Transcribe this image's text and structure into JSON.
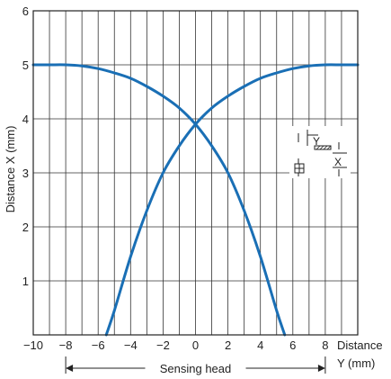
{
  "chart_data": {
    "type": "line",
    "ylabel": "Distance X (mm)",
    "xlabel_line1": "Distance",
    "xlabel_line2": "Y (mm)",
    "xlim": [
      -10,
      10
    ],
    "ylim": [
      0,
      6
    ],
    "x_ticks": [
      -10,
      -8,
      -6,
      -4,
      -2,
      0,
      2,
      4,
      6,
      8
    ],
    "x_tick_labels": [
      "−10",
      "−8",
      "−6",
      "−4",
      "−2",
      "0",
      "2",
      "4",
      "6",
      "8"
    ],
    "y_ticks": [
      1,
      2,
      3,
      4,
      5,
      6
    ],
    "y_tick_labels": [
      "1",
      "2",
      "3",
      "4",
      "5",
      "6"
    ],
    "grid": true,
    "line_color": "#1a6fb5",
    "series": [
      {
        "x": [
          -10,
          -9,
          -8,
          -7,
          -6,
          -5,
          -4,
          -3,
          -2,
          -1,
          0,
          1,
          2,
          3,
          4,
          5,
          5.5
        ],
        "y": [
          5.0,
          5.0,
          5.0,
          4.98,
          4.93,
          4.85,
          4.75,
          4.6,
          4.42,
          4.2,
          3.9,
          3.5,
          3.0,
          2.3,
          1.45,
          0.45,
          0.0
        ]
      },
      {
        "x": [
          -5.5,
          -5,
          -4,
          -3,
          -2,
          -1,
          0,
          1,
          2,
          3,
          4,
          5,
          6,
          7,
          8,
          9,
          10
        ],
        "y": [
          0.0,
          0.45,
          1.45,
          2.3,
          3.0,
          3.5,
          3.9,
          4.2,
          4.42,
          4.6,
          4.75,
          4.85,
          4.93,
          4.98,
          5.0,
          5.0,
          5.0
        ]
      }
    ],
    "sensing_head_label": "Sensing head",
    "sensing_head_range": [
      -8,
      8
    ],
    "inset": {
      "label_y": "Y",
      "label_x": "X"
    }
  }
}
